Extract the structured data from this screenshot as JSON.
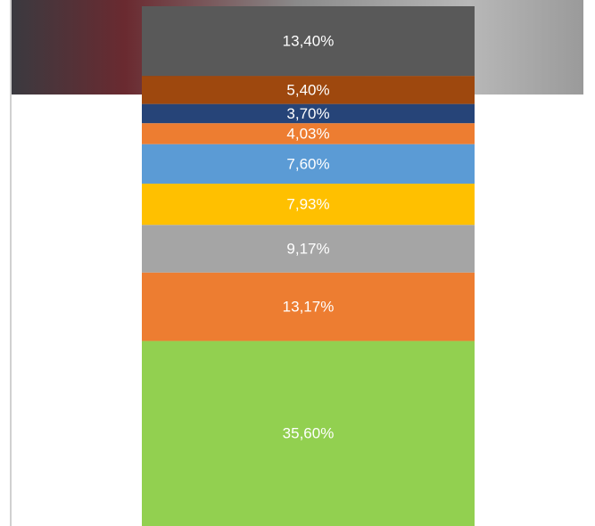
{
  "chart_data": {
    "type": "bar",
    "stacked": true,
    "ylim": [
      0,
      100
    ],
    "series": [
      {
        "color": "#92d050",
        "values": [
          35.6
        ],
        "value_labels": [
          "35,60%"
        ]
      },
      {
        "color": "#ed7d31",
        "values": [
          13.17
        ],
        "value_labels": [
          "13,17%"
        ]
      },
      {
        "color": "#a5a5a5",
        "values": [
          9.17
        ],
        "value_labels": [
          "9,17%"
        ]
      },
      {
        "color": "#ffc000",
        "values": [
          7.93
        ],
        "value_labels": [
          "7,93%"
        ]
      },
      {
        "color": "#5b9bd5",
        "values": [
          7.6
        ],
        "value_labels": [
          "7,60%"
        ]
      },
      {
        "color": "#ed7d31",
        "values": [
          4.03
        ],
        "value_labels": [
          "4,03%"
        ]
      },
      {
        "color": "#264478",
        "values": [
          3.7
        ],
        "value_labels": [
          "3,70%"
        ]
      },
      {
        "color": "#9e480e",
        "values": [
          5.4
        ],
        "value_labels": [
          "5,40%"
        ]
      },
      {
        "color": "#595959",
        "values": [
          13.4
        ],
        "value_labels": [
          "13,40%"
        ]
      }
    ]
  }
}
